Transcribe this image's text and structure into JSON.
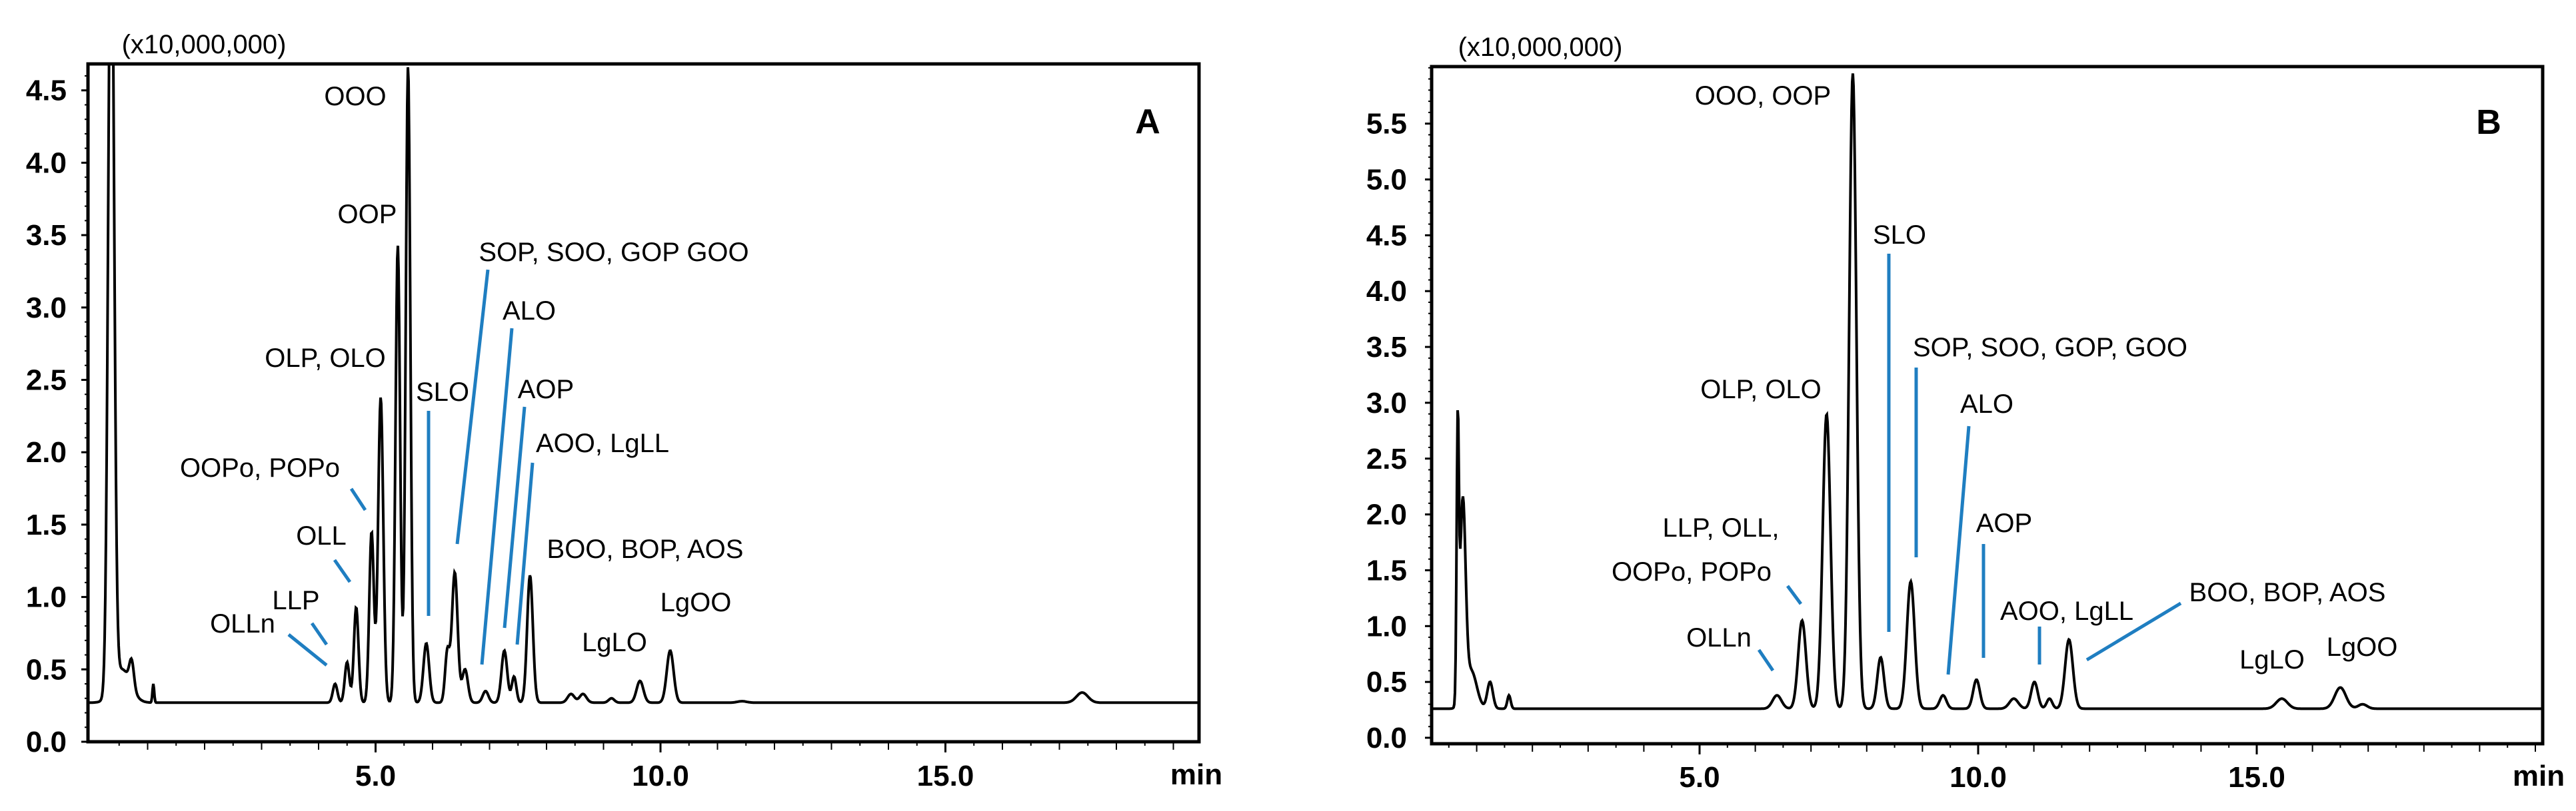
{
  "chart_data": [
    {
      "type": "line",
      "panel_label": "A",
      "y_multiplier_label": "(x10,000,000)",
      "xlabel": "min",
      "xlim": [
        0,
        19.5
      ],
      "ylim": [
        0,
        4.68
      ],
      "x_ticks": [
        "5.0",
        "10.0",
        "15.0"
      ],
      "x_tick_values": [
        5,
        10,
        15
      ],
      "y_ticks": [
        "0.0",
        "0.5",
        "1.0",
        "1.5",
        "2.0",
        "2.5",
        "3.0",
        "3.5",
        "4.0",
        "4.5"
      ],
      "y_tick_values": [
        0,
        0.5,
        1,
        1.5,
        2,
        2.5,
        3,
        3.5,
        4,
        4.5
      ],
      "baseline": 0.27,
      "trace_color": "#000000",
      "leader_color": "#1f7ec1",
      "peaks": [
        {
          "t": 0.36,
          "h": 6.0,
          "w": 0.05
        },
        {
          "t": 0.55,
          "h": 0.5,
          "w": 0.15
        },
        {
          "t": 0.72,
          "h": 0.45,
          "w": 0.04
        },
        {
          "t": 1.1,
          "h": 0.4,
          "w": 0.015
        },
        {
          "t": 4.29,
          "h": 0.4,
          "w": 0.04
        },
        {
          "t": 4.5,
          "h": 0.55,
          "w": 0.04
        },
        {
          "t": 4.66,
          "h": 0.93,
          "w": 0.04
        },
        {
          "t": 4.93,
          "h": 1.45,
          "w": 0.04
        },
        {
          "t": 5.09,
          "h": 2.38,
          "w": 0.045
        },
        {
          "t": 5.39,
          "h": 3.43,
          "w": 0.04
        },
        {
          "t": 5.57,
          "h": 4.67,
          "w": 0.04
        },
        {
          "t": 5.89,
          "h": 0.68,
          "w": 0.05
        },
        {
          "t": 6.26,
          "h": 0.62,
          "w": 0.04
        },
        {
          "t": 6.39,
          "h": 1.17,
          "w": 0.05
        },
        {
          "t": 6.57,
          "h": 0.5,
          "w": 0.05
        },
        {
          "t": 6.93,
          "h": 0.35,
          "w": 0.05
        },
        {
          "t": 7.26,
          "h": 0.63,
          "w": 0.05
        },
        {
          "t": 7.43,
          "h": 0.45,
          "w": 0.04
        },
        {
          "t": 7.71,
          "h": 1.15,
          "w": 0.05
        },
        {
          "t": 8.43,
          "h": 0.33,
          "w": 0.06
        },
        {
          "t": 8.64,
          "h": 0.33,
          "w": 0.06
        },
        {
          "t": 9.14,
          "h": 0.3,
          "w": 0.05
        },
        {
          "t": 9.64,
          "h": 0.42,
          "w": 0.06
        },
        {
          "t": 10.17,
          "h": 0.63,
          "w": 0.06
        },
        {
          "t": 11.43,
          "h": 0.28,
          "w": 0.08
        },
        {
          "t": 17.4,
          "h": 0.34,
          "w": 0.1
        }
      ],
      "annotations": [
        "OOO",
        "OOP",
        "SOP, SOO, GOP GOO",
        "ALO",
        "OLP, OLO",
        "SLO",
        "AOP",
        "AOO, LgLL",
        "OOPo, POPo",
        "OLL",
        "BOO, BOP, AOS",
        "LLP",
        "LgOO",
        "OLLn",
        "LgLO"
      ]
    },
    {
      "type": "line",
      "panel_label": "B",
      "y_multiplier_label": "(x10,000,000)",
      "xlabel": "min",
      "xlim": [
        0,
        20.1
      ],
      "ylim": [
        0,
        6.0
      ],
      "x_ticks": [
        "5.0",
        "10.0",
        "15.0"
      ],
      "x_tick_values": [
        5,
        10,
        15
      ],
      "y_ticks": [
        "0.0",
        "0.5",
        "1.0",
        "1.5",
        "2.0",
        "2.5",
        "3.0",
        "3.5",
        "4.0",
        "4.5",
        "5.0",
        "5.5"
      ],
      "y_tick_values": [
        0,
        0.5,
        1,
        1.5,
        2,
        2.5,
        3,
        3.5,
        4,
        4.5,
        5,
        5.5
      ],
      "baseline": 0.26,
      "trace_color": "#000000",
      "leader_color": "#1f7ec1",
      "peaks": [
        {
          "t": 0.66,
          "h": 2.6,
          "w": 0.02
        },
        {
          "t": 0.75,
          "h": 2.05,
          "w": 0.05
        },
        {
          "t": 0.9,
          "h": 0.6,
          "w": 0.1
        },
        {
          "t": 1.24,
          "h": 0.5,
          "w": 0.05
        },
        {
          "t": 1.58,
          "h": 0.38,
          "w": 0.03
        },
        {
          "t": 6.39,
          "h": 0.38,
          "w": 0.08
        },
        {
          "t": 6.84,
          "h": 1.05,
          "w": 0.07
        },
        {
          "t": 7.28,
          "h": 2.9,
          "w": 0.07
        },
        {
          "t": 7.75,
          "h": 5.95,
          "w": 0.065
        },
        {
          "t": 8.25,
          "h": 0.72,
          "w": 0.06
        },
        {
          "t": 8.79,
          "h": 1.4,
          "w": 0.07
        },
        {
          "t": 9.37,
          "h": 0.38,
          "w": 0.06
        },
        {
          "t": 9.97,
          "h": 0.52,
          "w": 0.06
        },
        {
          "t": 10.64,
          "h": 0.35,
          "w": 0.08
        },
        {
          "t": 11.01,
          "h": 0.5,
          "w": 0.06
        },
        {
          "t": 11.28,
          "h": 0.35,
          "w": 0.05
        },
        {
          "t": 11.63,
          "h": 0.88,
          "w": 0.07
        },
        {
          "t": 15.45,
          "h": 0.35,
          "w": 0.1
        },
        {
          "t": 16.5,
          "h": 0.45,
          "w": 0.1
        },
        {
          "t": 16.9,
          "h": 0.3,
          "w": 0.08
        }
      ],
      "annotations": [
        "OOO, OOP",
        "SLO",
        "SOP, SOO, GOP, GOO",
        "ALO",
        "OLP, OLO",
        "AOP",
        "LLP, OLL,",
        "OOPo, POPo",
        "BOO, BOP, AOS",
        "AOO, LgLL",
        "OLLn",
        "LgLO",
        "LgOO"
      ]
    }
  ]
}
